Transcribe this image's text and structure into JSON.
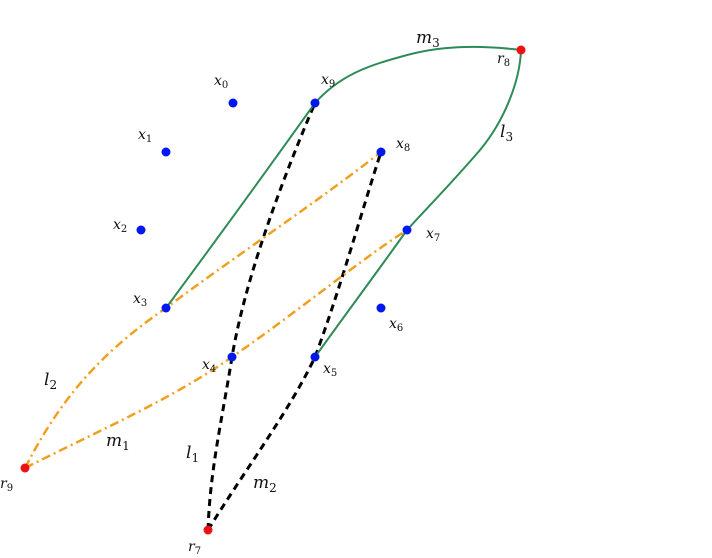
{
  "colors": {
    "point_blue": "#0018ee",
    "point_red": "#ee1111",
    "curve_green": "#2e8b57",
    "curve_orange": "#f0a020",
    "curve_black": "#000000"
  },
  "points": [
    {
      "id": "x0",
      "base": "x",
      "sub": "0",
      "color": "blue"
    },
    {
      "id": "x1",
      "base": "x",
      "sub": "1",
      "color": "blue"
    },
    {
      "id": "x2",
      "base": "x",
      "sub": "2",
      "color": "blue"
    },
    {
      "id": "x3",
      "base": "x",
      "sub": "3",
      "color": "blue"
    },
    {
      "id": "x4",
      "base": "x",
      "sub": "4",
      "color": "blue"
    },
    {
      "id": "x5",
      "base": "x",
      "sub": "5",
      "color": "blue"
    },
    {
      "id": "x6",
      "base": "x",
      "sub": "6",
      "color": "blue"
    },
    {
      "id": "x7",
      "base": "x",
      "sub": "7",
      "color": "blue"
    },
    {
      "id": "x8",
      "base": "x",
      "sub": "8",
      "color": "blue"
    },
    {
      "id": "x9",
      "base": "x",
      "sub": "9",
      "color": "blue"
    },
    {
      "id": "r7",
      "base": "r",
      "sub": "7",
      "color": "red"
    },
    {
      "id": "r8",
      "base": "r",
      "sub": "8",
      "color": "red"
    },
    {
      "id": "r9",
      "base": "r",
      "sub": "9",
      "color": "red"
    }
  ],
  "curves": [
    {
      "id": "l1",
      "base": "l",
      "sub": "1",
      "style": "black-dashed"
    },
    {
      "id": "m2",
      "base": "m",
      "sub": "2",
      "style": "black-dashed"
    },
    {
      "id": "l2",
      "base": "l",
      "sub": "2",
      "style": "orange-dashdot"
    },
    {
      "id": "m1",
      "base": "m",
      "sub": "1",
      "style": "orange-dashdot"
    },
    {
      "id": "l3",
      "base": "l",
      "sub": "3",
      "style": "green-solid"
    },
    {
      "id": "m3",
      "base": "m",
      "sub": "3",
      "style": "green-solid"
    }
  ]
}
